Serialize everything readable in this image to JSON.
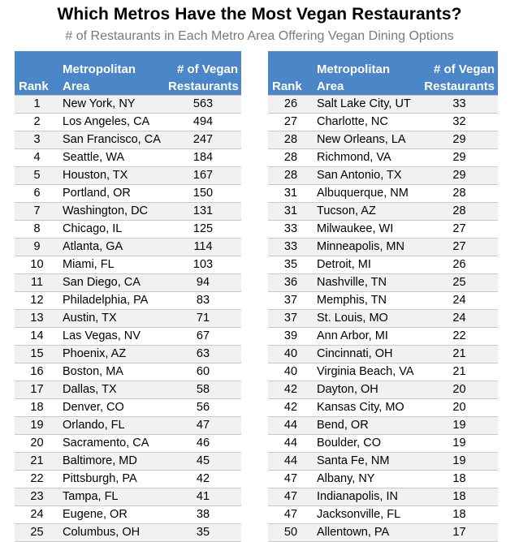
{
  "title": "Which Metros Have the Most Vegan Restaurants?",
  "subtitle": "# of Restaurants in Each Metro Area Offering Vegan Dining Options",
  "columns": {
    "rank": "Rank",
    "area_line1": "Metropolitan",
    "area_line2": "Area",
    "count_line1": "# of Vegan",
    "count_line2": "Restaurants"
  },
  "left_rows": [
    {
      "rank": "1",
      "area": "New York, NY",
      "count": "563"
    },
    {
      "rank": "2",
      "area": "Los Angeles, CA",
      "count": "494"
    },
    {
      "rank": "3",
      "area": "San Francisco, CA",
      "count": "247"
    },
    {
      "rank": "4",
      "area": "Seattle, WA",
      "count": "184"
    },
    {
      "rank": "5",
      "area": "Houston, TX",
      "count": "167"
    },
    {
      "rank": "6",
      "area": "Portland, OR",
      "count": "150"
    },
    {
      "rank": "7",
      "area": "Washington, DC",
      "count": "131"
    },
    {
      "rank": "8",
      "area": "Chicago, IL",
      "count": "125"
    },
    {
      "rank": "9",
      "area": "Atlanta, GA",
      "count": "114"
    },
    {
      "rank": "10",
      "area": "Miami, FL",
      "count": "103"
    },
    {
      "rank": "11",
      "area": "San Diego, CA",
      "count": "94"
    },
    {
      "rank": "12",
      "area": "Philadelphia, PA",
      "count": "83"
    },
    {
      "rank": "13",
      "area": "Austin, TX",
      "count": "71"
    },
    {
      "rank": "14",
      "area": "Las Vegas, NV",
      "count": "67"
    },
    {
      "rank": "15",
      "area": "Phoenix, AZ",
      "count": "63"
    },
    {
      "rank": "16",
      "area": "Boston, MA",
      "count": "60"
    },
    {
      "rank": "17",
      "area": "Dallas, TX",
      "count": "58"
    },
    {
      "rank": "18",
      "area": "Denver, CO",
      "count": "56"
    },
    {
      "rank": "19",
      "area": "Orlando, FL",
      "count": "47"
    },
    {
      "rank": "20",
      "area": "Sacramento, CA",
      "count": "46"
    },
    {
      "rank": "21",
      "area": "Baltimore, MD",
      "count": "45"
    },
    {
      "rank": "22",
      "area": "Pittsburgh, PA",
      "count": "42"
    },
    {
      "rank": "23",
      "area": "Tampa, FL",
      "count": "41"
    },
    {
      "rank": "24",
      "area": "Eugene, OR",
      "count": "38"
    },
    {
      "rank": "25",
      "area": "Columbus, OH",
      "count": "35"
    }
  ],
  "right_rows": [
    {
      "rank": "26",
      "area": "Salt Lake City, UT",
      "count": "33"
    },
    {
      "rank": "27",
      "area": "Charlotte, NC",
      "count": "32"
    },
    {
      "rank": "28",
      "area": "New Orleans, LA",
      "count": "29"
    },
    {
      "rank": "28",
      "area": "Richmond, VA",
      "count": "29"
    },
    {
      "rank": "28",
      "area": "San Antonio, TX",
      "count": "29"
    },
    {
      "rank": "31",
      "area": "Albuquerque, NM",
      "count": "28"
    },
    {
      "rank": "31",
      "area": "Tucson, AZ",
      "count": "28"
    },
    {
      "rank": "33",
      "area": "Milwaukee, WI",
      "count": "27"
    },
    {
      "rank": "33",
      "area": "Minneapolis, MN",
      "count": "27"
    },
    {
      "rank": "35",
      "area": "Detroit, MI",
      "count": "26"
    },
    {
      "rank": "36",
      "area": "Nashville, TN",
      "count": "25"
    },
    {
      "rank": "37",
      "area": "Memphis, TN",
      "count": "24"
    },
    {
      "rank": "37",
      "area": "St. Louis, MO",
      "count": "24"
    },
    {
      "rank": "39",
      "area": "Ann Arbor, MI",
      "count": "22"
    },
    {
      "rank": "40",
      "area": "Cincinnati, OH",
      "count": "21"
    },
    {
      "rank": "40",
      "area": "Virginia Beach, VA",
      "count": "21"
    },
    {
      "rank": "42",
      "area": "Dayton, OH",
      "count": "20"
    },
    {
      "rank": "42",
      "area": "Kansas City, MO",
      "count": "20"
    },
    {
      "rank": "44",
      "area": "Bend, OR",
      "count": "19"
    },
    {
      "rank": "44",
      "area": "Boulder, CO",
      "count": "19"
    },
    {
      "rank": "44",
      "area": "Santa Fe, NM",
      "count": "19"
    },
    {
      "rank": "47",
      "area": "Albany, NY",
      "count": "18"
    },
    {
      "rank": "47",
      "area": "Indianapolis, IN",
      "count": "18"
    },
    {
      "rank": "47",
      "area": "Jacksonville, FL",
      "count": "18"
    },
    {
      "rank": "50",
      "area": "Allentown, PA",
      "count": "17"
    }
  ],
  "colors": {
    "header_bg": "#4a86c8",
    "header_text": "#ffffff",
    "stripe": "#f1f1f1",
    "subtitle": "#7a7a7a"
  }
}
